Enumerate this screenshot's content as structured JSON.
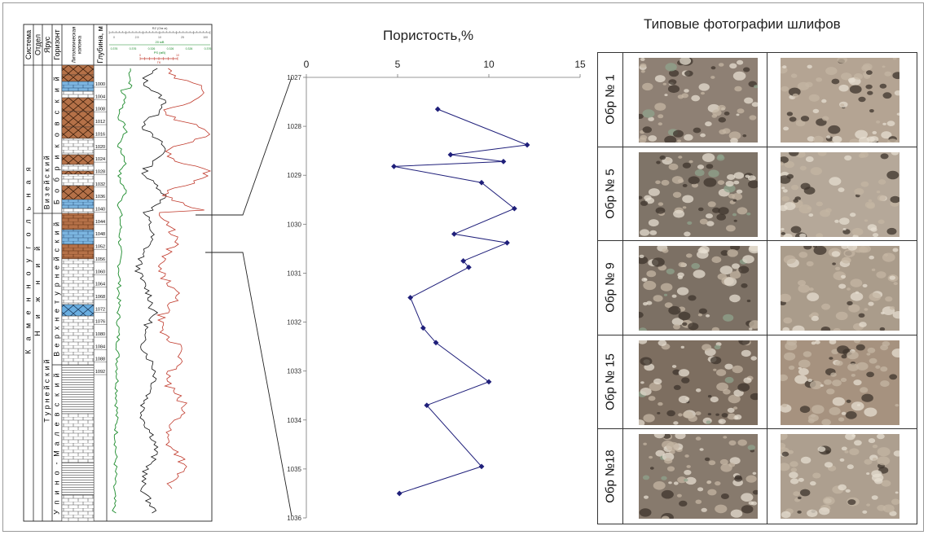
{
  "log": {
    "columns": [
      "Система",
      "Отдел",
      "Ярус",
      "Горизонт",
      "Литологическая колонка",
      "Глубина, м"
    ],
    "system": "Каменноугольная",
    "series": "Нижний",
    "stages": [
      "Визейский",
      "Турнейский"
    ],
    "horizons": [
      "Бобриковский",
      "Верхнетурнейский",
      "Упино-Малевский"
    ],
    "depths": [
      "1000",
      "1004",
      "1008",
      "1012",
      "1016",
      "1020",
      "1024",
      "1028",
      "1032",
      "1036",
      "1040",
      "1044",
      "1048",
      "1052",
      "1056",
      "1060",
      "1064",
      "1068",
      "1072",
      "1076",
      "1080",
      "1084",
      "1088",
      "1092"
    ],
    "header_scale": {
      "rz_label": "RZ (Ом м)",
      "rz_values": [
        "0",
        "2.5",
        "10",
        "25",
        "100"
      ],
      "ps_label": "PS (мВ)",
      "ps_range": "20 мВ",
      "ps_ticks": [
        "0.376",
        "0.376",
        "0.326",
        "0.326",
        "0.326",
        "0.376"
      ],
      "gk_label": "ГК",
      "gk_ticks": [
        "0",
        "10"
      ]
    }
  },
  "chart_data": {
    "type": "line",
    "title": "Пористость,%",
    "xlabel": "",
    "ylabel": "",
    "x_ticks": [
      "0",
      "5",
      "10",
      "15"
    ],
    "xlim": [
      0,
      15
    ],
    "y_ticks": [
      "1027",
      "1028",
      "1029",
      "1030",
      "1031",
      "1032",
      "1033",
      "1034",
      "1035",
      "1036"
    ],
    "ylim": [
      1027,
      1036
    ],
    "series": [
      {
        "name": "",
        "points": [
          {
            "x": 7.2,
            "y": 1027.65
          },
          {
            "x": 12.1,
            "y": 1028.38
          },
          {
            "x": 7.9,
            "y": 1028.58
          },
          {
            "x": 10.8,
            "y": 1028.72
          },
          {
            "x": 4.8,
            "y": 1028.82
          },
          {
            "x": 9.6,
            "y": 1029.15
          },
          {
            "x": 11.4,
            "y": 1029.68
          },
          {
            "x": 8.1,
            "y": 1030.2
          },
          {
            "x": 11.0,
            "y": 1030.38
          },
          {
            "x": 8.6,
            "y": 1030.75
          },
          {
            "x": 8.9,
            "y": 1030.88
          },
          {
            "x": 5.7,
            "y": 1031.5
          },
          {
            "x": 6.4,
            "y": 1032.12
          },
          {
            "x": 7.1,
            "y": 1032.42
          },
          {
            "x": 10.0,
            "y": 1033.22
          },
          {
            "x": 6.6,
            "y": 1033.7
          },
          {
            "x": 9.6,
            "y": 1034.95
          },
          {
            "x": 5.1,
            "y": 1035.5
          }
        ]
      }
    ],
    "color": "#1f1f7a",
    "grid": false
  },
  "photos": {
    "title": "Типовые фотографии шлифов",
    "rows": [
      {
        "label": "Обр № 1",
        "tone_a": "#8e8074",
        "tone_b": "#b4a493"
      },
      {
        "label": "Обр № 5",
        "tone_a": "#7f7468",
        "tone_b": "#b5a899"
      },
      {
        "label": "Обр № 9",
        "tone_a": "#7c7064",
        "tone_b": "#aa9c8b"
      },
      {
        "label": "Обр № 15",
        "tone_a": "#7d6e60",
        "tone_b": "#a6927f"
      },
      {
        "label": "Обр №18",
        "tone_a": "#877a6d",
        "tone_b": "#ad9f8f"
      }
    ]
  }
}
